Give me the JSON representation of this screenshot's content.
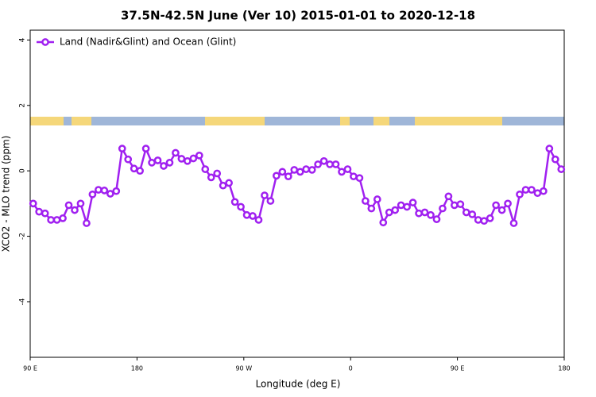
{
  "chart_data": {
    "type": "line",
    "title": "37.5N-42.5N June (Ver 10)   2015-01-01 to 2020-12-18",
    "xlabel": "Longitude (deg E)",
    "ylabel": "XCO2 - MLO trend (ppm)",
    "xlim": [
      90,
      540
    ],
    "ylim": [
      -5.7,
      4.3
    ],
    "xticks": [
      {
        "value": 90,
        "label": "90 E"
      },
      180,
      {
        "value": 270,
        "label": "90 W"
      },
      {
        "value": 360,
        "label": "0"
      },
      {
        "value": 450,
        "label": "90 E"
      },
      {
        "value": 540,
        "label": "180"
      }
    ],
    "yticks": [
      -4,
      -2,
      0,
      2,
      4
    ],
    "legend": "top-left",
    "series": [
      {
        "name": "Land (Nadir&Glint) and Ocean (Glint)",
        "color": "#a020f0",
        "x": [
          92.5,
          97.5,
          102.5,
          107.5,
          112.5,
          117.5,
          122.5,
          127.5,
          132.5,
          137.5,
          142.5,
          147.5,
          152.5,
          157.5,
          162.5,
          167.5,
          172.5,
          177.5,
          182.5,
          187.5,
          192.5,
          197.5,
          202.5,
          207.5,
          212.5,
          217.5,
          222.5,
          227.5,
          232.5,
          237.5,
          242.5,
          247.5,
          252.5,
          257.5,
          262.5,
          267.5,
          272.5,
          277.5,
          282.5,
          287.5,
          292.5,
          297.5,
          302.5,
          307.5,
          312.5,
          317.5,
          322.5,
          327.5,
          332.5,
          337.5,
          342.5,
          347.5,
          352.5,
          357.5,
          362.5,
          367.5,
          372.5,
          377.5,
          382.5,
          387.5,
          392.5,
          397.5,
          402.5,
          407.5,
          412.5,
          417.5,
          422.5,
          427.5,
          432.5,
          437.5,
          442.5,
          447.5,
          452.5,
          457.5,
          462.5,
          467.5,
          472.5,
          477.5,
          482.5,
          487.5,
          492.5,
          497.5,
          502.5,
          507.5,
          512.5,
          517.5,
          522.5,
          527.5,
          532.5,
          537.5
        ],
        "values": [
          -1.0,
          -1.25,
          -1.3,
          -1.5,
          -1.5,
          -1.45,
          -1.05,
          -1.2,
          -1.0,
          -1.6,
          -0.72,
          -0.58,
          -0.6,
          -0.7,
          -0.62,
          0.68,
          0.35,
          0.07,
          0.0,
          0.68,
          0.25,
          0.32,
          0.15,
          0.25,
          0.55,
          0.37,
          0.3,
          0.38,
          0.47,
          0.05,
          -0.2,
          -0.08,
          -0.45,
          -0.37,
          -0.95,
          -1.1,
          -1.35,
          -1.38,
          -1.5,
          -0.75,
          -0.92,
          -0.15,
          -0.03,
          -0.17,
          0.03,
          -0.03,
          0.05,
          0.03,
          0.2,
          0.3,
          0.2,
          0.2,
          -0.03,
          0.05,
          -0.17,
          -0.22,
          -0.92,
          -1.15,
          -0.87,
          -1.58,
          -1.27,
          -1.2,
          -1.05,
          -1.1,
          -0.97,
          -1.3,
          -1.27,
          -1.35,
          -1.48,
          -1.15,
          -0.78,
          -1.05,
          -1.02,
          -1.27,
          -1.33,
          -1.5,
          -1.53,
          -1.45,
          -1.05,
          -1.2,
          -1.0,
          -1.6,
          -0.72,
          -0.58,
          -0.58,
          -0.68,
          -0.62,
          0.68,
          0.35,
          0.05
        ]
      }
    ]
  }
}
